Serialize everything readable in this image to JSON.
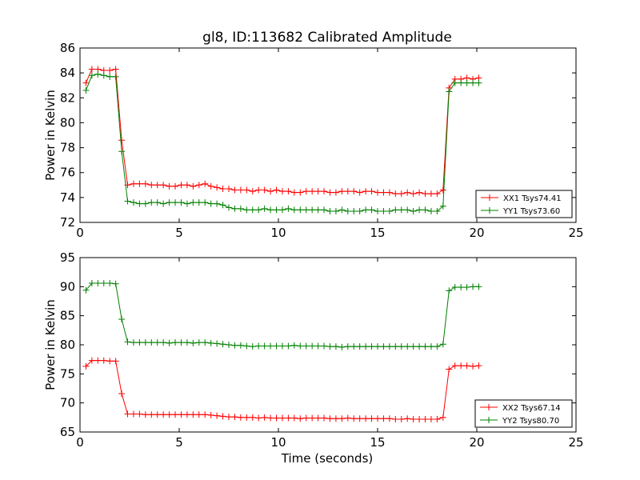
{
  "figure": {
    "title": "gl8, ID:113682 Calibrated Amplitude",
    "xlabel": "Time (seconds)"
  },
  "colors": {
    "XX": "#ff0000",
    "YY": "#008000"
  },
  "chart_data": [
    {
      "type": "line",
      "title": "gl8, ID:113682 Calibrated Amplitude",
      "xlabel": "",
      "ylabel": "Power in Kelvin",
      "xlim": [
        0,
        25
      ],
      "ylim": [
        72,
        86
      ],
      "xticks": [
        0,
        5,
        10,
        15,
        20,
        25
      ],
      "yticks": [
        72,
        74,
        76,
        78,
        80,
        82,
        84,
        86
      ],
      "grid": false,
      "legend_position": "lower-right",
      "x": [
        0.3,
        0.6,
        0.9,
        1.2,
        1.5,
        1.8,
        2.1,
        2.4,
        2.7,
        3.0,
        3.3,
        3.6,
        3.9,
        4.2,
        4.5,
        4.8,
        5.1,
        5.4,
        5.7,
        6.0,
        6.3,
        6.6,
        6.9,
        7.2,
        7.5,
        7.8,
        8.1,
        8.4,
        8.7,
        9.0,
        9.3,
        9.6,
        9.9,
        10.2,
        10.5,
        10.8,
        11.1,
        11.4,
        11.7,
        12.0,
        12.3,
        12.6,
        12.9,
        13.2,
        13.5,
        13.8,
        14.1,
        14.4,
        14.7,
        15.0,
        15.3,
        15.6,
        15.9,
        16.2,
        16.5,
        16.8,
        17.1,
        17.4,
        17.7,
        18.0,
        18.3,
        18.6,
        18.9,
        19.2,
        19.5,
        19.8,
        20.1
      ],
      "series": [
        {
          "name": "XX1 Tsys74.41",
          "color": "#ff0000",
          "values": [
            83.2,
            84.3,
            84.3,
            84.2,
            84.2,
            84.3,
            78.6,
            75.0,
            75.1,
            75.1,
            75.1,
            75.0,
            75.0,
            75.0,
            74.9,
            74.9,
            75.0,
            75.0,
            74.9,
            75.0,
            75.1,
            74.9,
            74.8,
            74.7,
            74.7,
            74.6,
            74.6,
            74.6,
            74.5,
            74.6,
            74.6,
            74.5,
            74.6,
            74.5,
            74.5,
            74.4,
            74.4,
            74.5,
            74.5,
            74.5,
            74.5,
            74.4,
            74.4,
            74.5,
            74.5,
            74.5,
            74.4,
            74.5,
            74.5,
            74.4,
            74.4,
            74.4,
            74.3,
            74.3,
            74.4,
            74.3,
            74.4,
            74.3,
            74.3,
            74.3,
            74.6,
            82.8,
            83.5,
            83.5,
            83.6,
            83.5,
            83.6
          ]
        },
        {
          "name": "YY1 Tsys73.60",
          "color": "#008000",
          "values": [
            82.6,
            83.8,
            83.9,
            83.8,
            83.7,
            83.7,
            77.7,
            73.7,
            73.6,
            73.5,
            73.5,
            73.6,
            73.6,
            73.5,
            73.6,
            73.6,
            73.6,
            73.5,
            73.6,
            73.6,
            73.6,
            73.5,
            73.5,
            73.4,
            73.2,
            73.1,
            73.1,
            73.0,
            73.0,
            73.0,
            73.1,
            73.0,
            73.0,
            73.0,
            73.1,
            73.0,
            73.0,
            73.0,
            73.0,
            73.0,
            73.0,
            72.9,
            72.9,
            73.0,
            72.9,
            72.9,
            72.9,
            73.0,
            73.0,
            72.9,
            72.9,
            72.9,
            73.0,
            73.0,
            73.0,
            72.9,
            73.0,
            73.0,
            72.9,
            72.9,
            73.3,
            82.5,
            83.2,
            83.2,
            83.2,
            83.2,
            83.2
          ]
        }
      ]
    },
    {
      "type": "line",
      "title": "",
      "xlabel": "Time (seconds)",
      "ylabel": "Power in Kelvin",
      "xlim": [
        0,
        25
      ],
      "ylim": [
        65,
        95
      ],
      "xticks": [
        0,
        5,
        10,
        15,
        20,
        25
      ],
      "yticks": [
        65,
        70,
        75,
        80,
        85,
        90,
        95
      ],
      "grid": false,
      "legend_position": "lower-right",
      "x": [
        0.3,
        0.6,
        0.9,
        1.2,
        1.5,
        1.8,
        2.1,
        2.4,
        2.7,
        3.0,
        3.3,
        3.6,
        3.9,
        4.2,
        4.5,
        4.8,
        5.1,
        5.4,
        5.7,
        6.0,
        6.3,
        6.6,
        6.9,
        7.2,
        7.5,
        7.8,
        8.1,
        8.4,
        8.7,
        9.0,
        9.3,
        9.6,
        9.9,
        10.2,
        10.5,
        10.8,
        11.1,
        11.4,
        11.7,
        12.0,
        12.3,
        12.6,
        12.9,
        13.2,
        13.5,
        13.8,
        14.1,
        14.4,
        14.7,
        15.0,
        15.3,
        15.6,
        15.9,
        16.2,
        16.5,
        16.8,
        17.1,
        17.4,
        17.7,
        18.0,
        18.3,
        18.6,
        18.9,
        19.2,
        19.5,
        19.8,
        20.1
      ],
      "series": [
        {
          "name": "XX2 Tsys67.14",
          "color": "#ff0000",
          "values": [
            76.3,
            77.3,
            77.3,
            77.3,
            77.2,
            77.2,
            71.6,
            68.1,
            68.1,
            68.1,
            68.0,
            68.0,
            68.0,
            68.0,
            68.0,
            68.0,
            68.0,
            68.0,
            68.0,
            68.0,
            68.0,
            67.9,
            67.8,
            67.7,
            67.6,
            67.6,
            67.5,
            67.5,
            67.5,
            67.4,
            67.5,
            67.4,
            67.4,
            67.4,
            67.4,
            67.4,
            67.3,
            67.4,
            67.4,
            67.4,
            67.4,
            67.3,
            67.3,
            67.3,
            67.4,
            67.3,
            67.3,
            67.3,
            67.3,
            67.3,
            67.3,
            67.3,
            67.2,
            67.2,
            67.3,
            67.2,
            67.2,
            67.2,
            67.2,
            67.2,
            67.5,
            75.8,
            76.4,
            76.4,
            76.4,
            76.3,
            76.4
          ]
        },
        {
          "name": "YY2 Tsys80.70",
          "color": "#008000",
          "values": [
            89.4,
            90.6,
            90.6,
            90.6,
            90.6,
            90.5,
            84.4,
            80.5,
            80.4,
            80.4,
            80.4,
            80.4,
            80.4,
            80.4,
            80.3,
            80.4,
            80.4,
            80.4,
            80.3,
            80.4,
            80.4,
            80.3,
            80.2,
            80.1,
            80.0,
            79.9,
            79.9,
            79.8,
            79.7,
            79.8,
            79.8,
            79.8,
            79.8,
            79.8,
            79.8,
            79.9,
            79.8,
            79.8,
            79.8,
            79.8,
            79.8,
            79.7,
            79.7,
            79.6,
            79.7,
            79.7,
            79.7,
            79.7,
            79.7,
            79.7,
            79.7,
            79.7,
            79.7,
            79.7,
            79.7,
            79.7,
            79.7,
            79.7,
            79.7,
            79.7,
            80.1,
            89.3,
            89.9,
            89.9,
            89.9,
            90.0,
            90.0
          ]
        }
      ]
    }
  ]
}
